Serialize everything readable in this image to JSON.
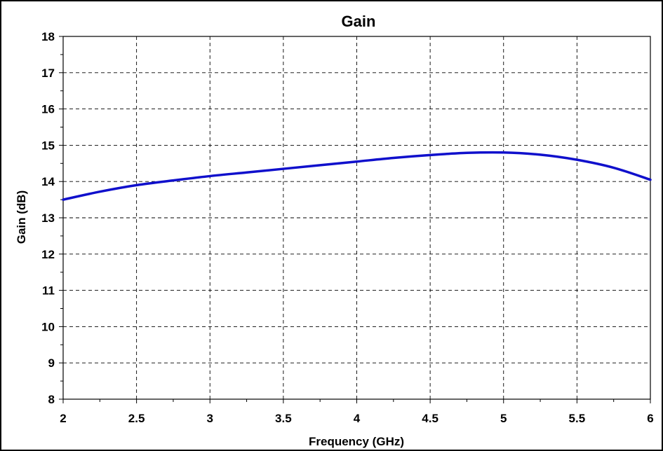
{
  "chart_data": {
    "type": "line",
    "title": "Gain",
    "xlabel": "Frequency (GHz)",
    "ylabel": "Gain (dB)",
    "xlim": [
      2,
      6
    ],
    "ylim": [
      8,
      18
    ],
    "x_ticks": [
      "2",
      "2.5",
      "3",
      "3.5",
      "4",
      "4.5",
      "5",
      "5.5",
      "6"
    ],
    "y_ticks": [
      "8",
      "9",
      "10",
      "11",
      "12",
      "13",
      "14",
      "15",
      "16",
      "17",
      "18"
    ],
    "grid": true,
    "line_color": "#1010cc",
    "series": [
      {
        "x": [
          2.0,
          2.25,
          2.5,
          2.75,
          3.0,
          3.25,
          3.5,
          3.75,
          4.0,
          4.25,
          4.5,
          4.75,
          5.0,
          5.25,
          5.5,
          5.75,
          6.0
        ],
        "values": [
          13.5,
          13.72,
          13.9,
          14.03,
          14.15,
          14.25,
          14.35,
          14.45,
          14.55,
          14.65,
          14.73,
          14.79,
          14.8,
          14.74,
          14.6,
          14.38,
          14.05
        ]
      }
    ]
  }
}
